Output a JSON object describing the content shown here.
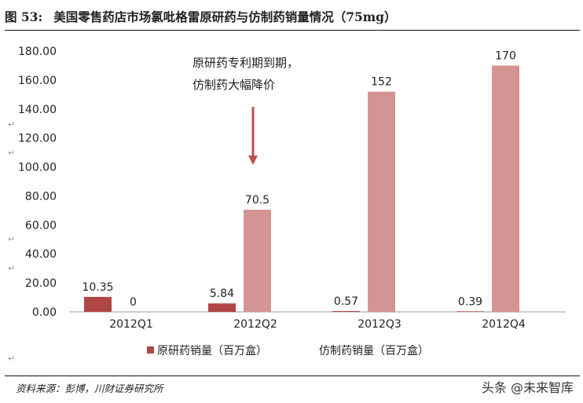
{
  "title": {
    "figure_no": "图 53:",
    "text": "美国零售药店市场氯吡格雷原研药与仿制药销量情况（75mg）"
  },
  "source": "资料来源：彭博，川财证券研究所",
  "watermark": "头条 @未来智库",
  "chart_data": {
    "type": "bar",
    "categories": [
      "2012Q1",
      "2012Q2",
      "2012Q3",
      "2012Q4"
    ],
    "series": [
      {
        "name": "原研药销量（百万盒）",
        "values": [
          10.35,
          5.84,
          0.57,
          0.39
        ],
        "labels": [
          "10.35",
          "5.84",
          "0.57",
          "0.39"
        ],
        "color": "#b04646"
      },
      {
        "name": "仿制药销量（百万盒）",
        "values": [
          0,
          70.5,
          152,
          170
        ],
        "labels": [
          "0",
          "70.5",
          "152",
          "170"
        ],
        "color": "#d49494"
      }
    ],
    "ylim": [
      0,
      180
    ],
    "yticks": [
      "0.00",
      "20.00",
      "40.00",
      "60.00",
      "80.00",
      "100.00",
      "120.00",
      "140.00",
      "160.00",
      "180.00"
    ],
    "grid": false,
    "legend": "bottom",
    "annotation": {
      "lines": [
        "原研药专利期到期，",
        "仿制药大幅降价"
      ],
      "arrow_color": "#c0504d"
    }
  }
}
